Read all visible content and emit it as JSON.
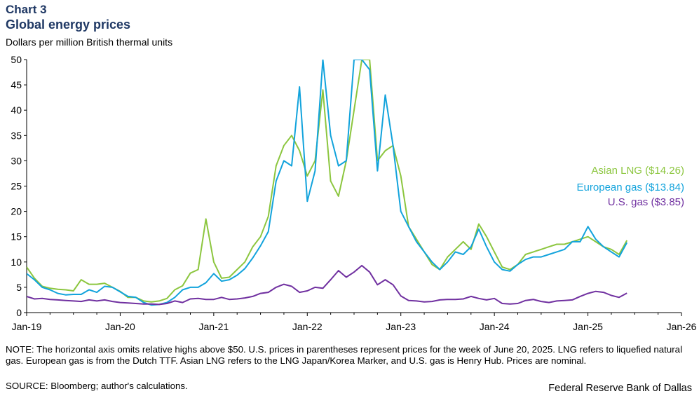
{
  "header": {
    "chart_number": "Chart 3",
    "title": "Global energy prices",
    "subtitle": "Dollars per million British thermal units"
  },
  "footer": {
    "note": "NOTE: The horizontal axis omits relative highs above $50. U.S. prices in parentheses represent prices for the week of June 20, 2025. LNG refers to liquefied natural gas. European gas is from the Dutch TTF. Asian LNG refers to the LNG Japan/Korea Marker, and U.S. gas is Henry Hub. Prices are nominal.",
    "source": "SOURCE: Bloomberg; author's calculations.",
    "credit": "Federal Reserve Bank of Dallas"
  },
  "colors": {
    "asian_lng": "#8cc63f",
    "european_gas": "#12a3dc",
    "us_gas": "#7030a0",
    "title": "#1f3864"
  },
  "chart_data": {
    "type": "line",
    "ylim": [
      0,
      50
    ],
    "yticks": [
      "0",
      "5",
      "10",
      "15",
      "20",
      "25",
      "30",
      "35",
      "40",
      "45",
      "50"
    ],
    "xticks": [
      "Jan-19",
      "Jan-20",
      "Jan-21",
      "Jan-22",
      "Jan-23",
      "Jan-24",
      "Jan-25",
      "Jan-26"
    ],
    "xlim": [
      "2019-01",
      "2026-01"
    ],
    "grid": false,
    "legend_placement": "right, inline",
    "series": [
      {
        "name": "Asian LNG ($14.26)",
        "key": "asian_lng",
        "color": "#8cc63f",
        "x": [
          "2019-01",
          "2019-02",
          "2019-03",
          "2019-04",
          "2019-05",
          "2019-06",
          "2019-07",
          "2019-08",
          "2019-09",
          "2019-10",
          "2019-11",
          "2019-12",
          "2020-01",
          "2020-02",
          "2020-03",
          "2020-04",
          "2020-05",
          "2020-06",
          "2020-07",
          "2020-08",
          "2020-09",
          "2020-10",
          "2020-11",
          "2020-12",
          "2021-01",
          "2021-02",
          "2021-03",
          "2021-04",
          "2021-05",
          "2021-06",
          "2021-07",
          "2021-08",
          "2021-09",
          "2021-10",
          "2021-11",
          "2021-12",
          "2022-01",
          "2022-02",
          "2022-03",
          "2022-04",
          "2022-05",
          "2022-06",
          "2022-07",
          "2022-08",
          "2022-09",
          "2022-10",
          "2022-11",
          "2022-12",
          "2023-01",
          "2023-02",
          "2023-03",
          "2023-04",
          "2023-05",
          "2023-06",
          "2023-07",
          "2023-08",
          "2023-09",
          "2023-10",
          "2023-11",
          "2023-12",
          "2024-01",
          "2024-02",
          "2024-03",
          "2024-04",
          "2024-05",
          "2024-06",
          "2024-07",
          "2024-08",
          "2024-09",
          "2024-10",
          "2024-11",
          "2024-12",
          "2025-01",
          "2025-02",
          "2025-03",
          "2025-04",
          "2025-05",
          "2025-06"
        ],
        "y": [
          9.0,
          6.8,
          5.2,
          4.8,
          4.6,
          4.5,
          4.3,
          6.5,
          5.6,
          5.6,
          5.8,
          5.0,
          4.2,
          3.0,
          3.0,
          2.3,
          2.1,
          2.3,
          2.8,
          4.5,
          5.3,
          7.8,
          8.5,
          18.5,
          10.0,
          6.8,
          7.0,
          8.5,
          10.0,
          13.0,
          15.0,
          19.0,
          29.0,
          33.0,
          35.0,
          32.0,
          27.0,
          30.0,
          44.0,
          26.0,
          23.0,
          30.0,
          40.0,
          50.0,
          50.0,
          30.0,
          32.0,
          33.0,
          27.0,
          17.0,
          14.5,
          12.0,
          9.5,
          8.5,
          11.0,
          12.5,
          14.0,
          12.5,
          17.5,
          15.0,
          12.0,
          9.0,
          8.5,
          9.5,
          11.5,
          12.0,
          12.5,
          13.0,
          13.5,
          13.5,
          14.0,
          14.5,
          15.0,
          14.0,
          13.0,
          12.5,
          11.5,
          14.26
        ]
      },
      {
        "name": "European gas ($13.84)",
        "key": "european_gas",
        "color": "#12a3dc",
        "x": [
          "2019-01",
          "2019-02",
          "2019-03",
          "2019-04",
          "2019-05",
          "2019-06",
          "2019-07",
          "2019-08",
          "2019-09",
          "2019-10",
          "2019-11",
          "2019-12",
          "2020-01",
          "2020-02",
          "2020-03",
          "2020-04",
          "2020-05",
          "2020-06",
          "2020-07",
          "2020-08",
          "2020-09",
          "2020-10",
          "2020-11",
          "2020-12",
          "2021-01",
          "2021-02",
          "2021-03",
          "2021-04",
          "2021-05",
          "2021-06",
          "2021-07",
          "2021-08",
          "2021-09",
          "2021-10",
          "2021-11",
          "2021-12",
          "2022-01",
          "2022-02",
          "2022-03",
          "2022-04",
          "2022-05",
          "2022-06",
          "2022-07",
          "2022-08",
          "2022-09",
          "2022-10",
          "2022-11",
          "2022-12",
          "2023-01",
          "2023-02",
          "2023-03",
          "2023-04",
          "2023-05",
          "2023-06",
          "2023-07",
          "2023-08",
          "2023-09",
          "2023-10",
          "2023-11",
          "2023-12",
          "2024-01",
          "2024-02",
          "2024-03",
          "2024-04",
          "2024-05",
          "2024-06",
          "2024-07",
          "2024-08",
          "2024-09",
          "2024-10",
          "2024-11",
          "2024-12",
          "2025-01",
          "2025-02",
          "2025-03",
          "2025-04",
          "2025-05",
          "2025-06"
        ],
        "y": [
          7.7,
          6.5,
          5.0,
          4.5,
          3.8,
          3.5,
          3.6,
          3.6,
          4.5,
          4.0,
          5.2,
          5.0,
          4.1,
          3.2,
          3.0,
          2.0,
          1.5,
          1.6,
          2.0,
          3.0,
          4.5,
          5.0,
          5.0,
          5.9,
          7.7,
          6.2,
          6.5,
          7.4,
          8.7,
          10.8,
          13.2,
          16.0,
          26.0,
          30.0,
          29.0,
          44.6,
          22.0,
          28.0,
          50.0,
          35.0,
          29.0,
          30.0,
          50.0,
          50.0,
          48.0,
          28.0,
          43.0,
          33.0,
          20.0,
          17.0,
          14.0,
          12.0,
          10.0,
          8.5,
          10.0,
          12.0,
          11.5,
          13.0,
          16.5,
          13.0,
          10.0,
          8.5,
          8.2,
          9.5,
          10.5,
          11.0,
          11.0,
          11.5,
          12.0,
          12.5,
          14.0,
          14.0,
          17.0,
          14.5,
          13.0,
          12.0,
          11.0,
          13.84
        ]
      },
      {
        "name": "U.S. gas ($3.85)",
        "key": "us_gas",
        "color": "#7030a0",
        "x": [
          "2019-01",
          "2019-02",
          "2019-03",
          "2019-04",
          "2019-05",
          "2019-06",
          "2019-07",
          "2019-08",
          "2019-09",
          "2019-10",
          "2019-11",
          "2019-12",
          "2020-01",
          "2020-02",
          "2020-03",
          "2020-04",
          "2020-05",
          "2020-06",
          "2020-07",
          "2020-08",
          "2020-09",
          "2020-10",
          "2020-11",
          "2020-12",
          "2021-01",
          "2021-02",
          "2021-03",
          "2021-04",
          "2021-05",
          "2021-06",
          "2021-07",
          "2021-08",
          "2021-09",
          "2021-10",
          "2021-11",
          "2021-12",
          "2022-01",
          "2022-02",
          "2022-03",
          "2022-04",
          "2022-05",
          "2022-06",
          "2022-07",
          "2022-08",
          "2022-09",
          "2022-10",
          "2022-11",
          "2022-12",
          "2023-01",
          "2023-02",
          "2023-03",
          "2023-04",
          "2023-05",
          "2023-06",
          "2023-07",
          "2023-08",
          "2023-09",
          "2023-10",
          "2023-11",
          "2023-12",
          "2024-01",
          "2024-02",
          "2024-03",
          "2024-04",
          "2024-05",
          "2024-06",
          "2024-07",
          "2024-08",
          "2024-09",
          "2024-10",
          "2024-11",
          "2024-12",
          "2025-01",
          "2025-02",
          "2025-03",
          "2025-04",
          "2025-05",
          "2025-06"
        ],
        "y": [
          3.2,
          2.7,
          2.8,
          2.6,
          2.5,
          2.4,
          2.3,
          2.2,
          2.5,
          2.3,
          2.5,
          2.2,
          2.0,
          1.9,
          1.8,
          1.7,
          1.7,
          1.6,
          1.8,
          2.3,
          2.0,
          2.7,
          2.8,
          2.6,
          2.6,
          3.0,
          2.6,
          2.7,
          2.9,
          3.2,
          3.8,
          4.0,
          5.0,
          5.6,
          5.2,
          4.0,
          4.3,
          5.0,
          4.8,
          6.5,
          8.3,
          7.0,
          8.0,
          9.3,
          8.0,
          5.5,
          6.5,
          5.5,
          3.3,
          2.4,
          2.3,
          2.1,
          2.2,
          2.5,
          2.6,
          2.6,
          2.7,
          3.2,
          2.8,
          2.5,
          2.8,
          1.8,
          1.7,
          1.8,
          2.4,
          2.6,
          2.2,
          2.0,
          2.3,
          2.4,
          2.5,
          3.2,
          3.8,
          4.2,
          4.0,
          3.4,
          3.0,
          3.85
        ]
      }
    ]
  }
}
